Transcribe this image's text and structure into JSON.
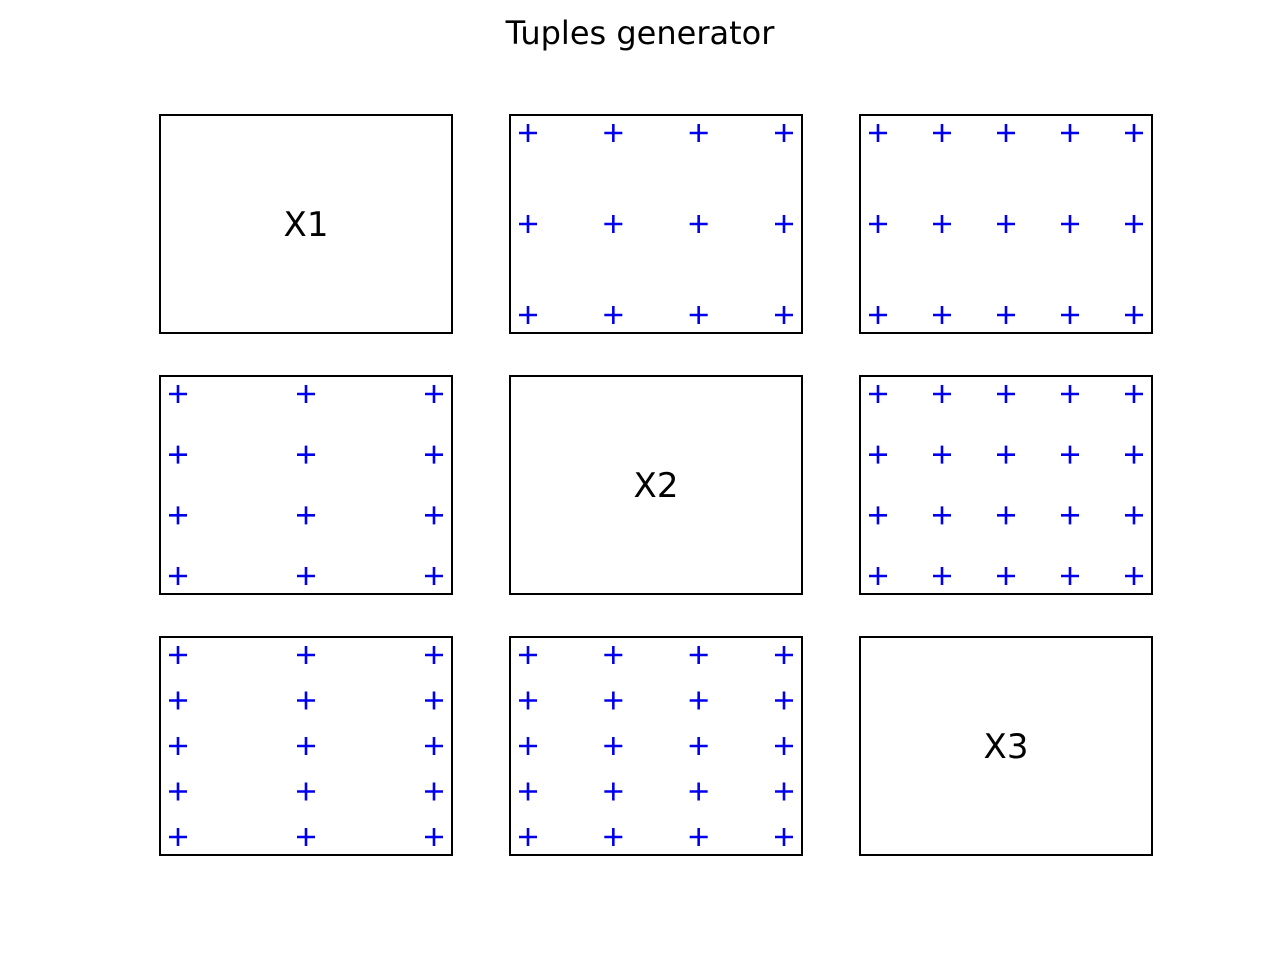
{
  "chart_data": {
    "type": "scatter",
    "title": "Tuples generator",
    "grid": false,
    "marker": "+",
    "marker_color": "#0000ee",
    "variables": [
      {
        "name": "X1",
        "values": [
          1,
          2,
          3
        ]
      },
      {
        "name": "X2",
        "values": [
          1,
          2,
          3,
          4
        ]
      },
      {
        "name": "X3",
        "values": [
          1,
          2,
          3,
          4,
          5
        ]
      }
    ],
    "rows": 3,
    "cols": 3
  }
}
